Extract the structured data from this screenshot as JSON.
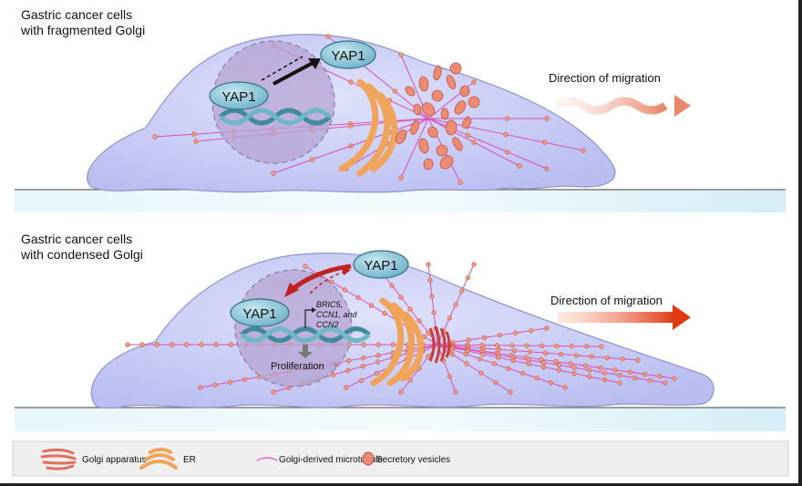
{
  "panels": {
    "top": {
      "title_line1": "Gastric cancer cells",
      "title_line2": "with fragmented Golgi",
      "yap_cytoplasm": "YAP1",
      "yap_nucleus": "YAP1",
      "migration": "Direction of migration"
    },
    "bottom": {
      "title_line1": "Gastric cancer cells",
      "title_line2": "with condensed Golgi",
      "yap_cytoplasm": "YAP1",
      "yap_nucleus": "YAP1",
      "genes_line1": "BRIC5,",
      "genes_line2": "CCN1, and",
      "genes_line3": "CCN2",
      "proliferation": "Proliferation",
      "proliferation_arrow": "↑",
      "migration": "Direction of migration"
    }
  },
  "legend": {
    "items": [
      {
        "label": "Golgi apparatus",
        "icon": "golgi-icon"
      },
      {
        "label": "ER",
        "icon": "er-icon"
      },
      {
        "label": "Golgi-derived microtubule",
        "icon": "microtubule-icon"
      },
      {
        "label": "Secretory vesicles",
        "icon": "vesicle-icon"
      }
    ]
  },
  "colors": {
    "cell": "#c9cdf2",
    "nucleus": "#b8a6d4",
    "yap": "#8fc6d8",
    "microtubule": "#d94fb8",
    "vesicle": "#e8806a",
    "er": "#f5b870",
    "migration_top": "#e8957a",
    "migration_bottom": "#e0401a"
  }
}
